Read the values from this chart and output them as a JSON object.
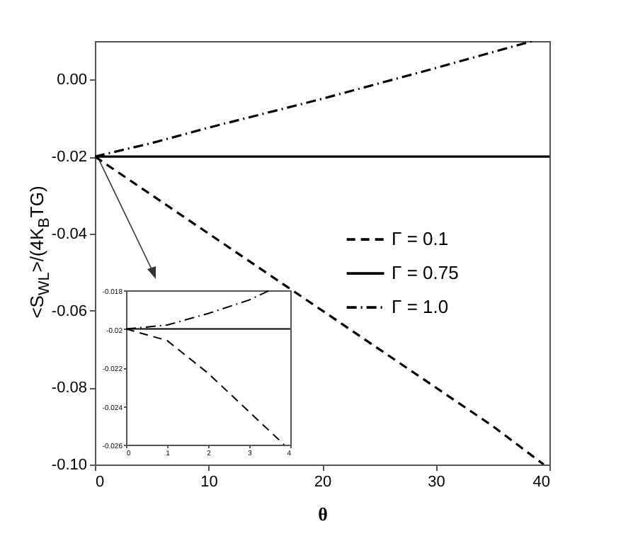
{
  "chart_data": [
    {
      "type": "line",
      "xlabel": "θ",
      "ylabel": "<S$_{WL}$>/(4K$_{B}$TG)",
      "xlim": [
        0,
        40
      ],
      "xticks": [
        0,
        10,
        20,
        30,
        40
      ],
      "ylim": [
        -0.1,
        0.01
      ],
      "yticks": [
        {
          "value": -0.1,
          "label": "-0.10"
        },
        -0.08,
        -0.06,
        -0.04,
        -0.02,
        {
          "value": 0,
          "label": "0.00"
        }
      ],
      "legend": "right",
      "grid": false,
      "series": [
        {
          "name": "Γ = 0.1",
          "color": "#000000",
          "line_style": "dashed",
          "x": [
            0,
            5,
            10,
            17,
            25,
            30,
            35,
            39.5
          ],
          "values": [
            -0.02,
            -0.03,
            -0.04,
            -0.054,
            -0.07,
            -0.08,
            -0.09,
            -0.1
          ]
        },
        {
          "name": "Γ = 0.75",
          "color": "#000000",
          "line_style": "solid",
          "x": [
            0,
            40
          ],
          "values": [
            -0.02,
            -0.02
          ]
        },
        {
          "name": "Γ = 1.0",
          "color": "#000000",
          "line_style": "dashdot",
          "x": [
            0,
            5,
            10,
            20,
            30,
            38.5
          ],
          "values": [
            -0.02,
            -0.0165,
            -0.0125,
            -0.005,
            0.003,
            0.01
          ]
        }
      ]
    },
    {
      "type": "line",
      "xlim": [
        0,
        4
      ],
      "xticks": [
        0,
        1,
        2,
        3,
        4
      ],
      "ylim": [
        -0.026,
        -0.018
      ],
      "yticks": [
        -0.026,
        -0.024,
        -0.022,
        -0.02,
        -0.018
      ],
      "grid": false,
      "series": [
        {
          "color": "#000000",
          "line_style": "dashed",
          "x": [
            0,
            1,
            2,
            3,
            3.85
          ],
          "values": [
            -0.02,
            -0.0206,
            -0.0223,
            -0.0243,
            -0.026
          ]
        },
        {
          "color": "#000000",
          "line_style": "solid",
          "x": [
            0,
            4
          ],
          "values": [
            -0.02,
            -0.02
          ]
        },
        {
          "color": "#000000",
          "line_style": "dashdot",
          "x": [
            0,
            1,
            2,
            3,
            3.5
          ],
          "values": [
            -0.02,
            -0.0198,
            -0.0192,
            -0.0185,
            -0.018
          ]
        }
      ]
    }
  ]
}
